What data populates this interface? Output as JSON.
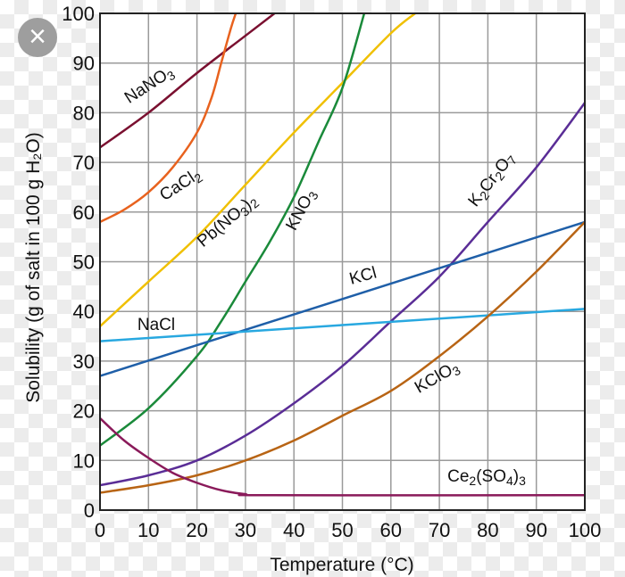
{
  "close_button": {
    "icon": "close-icon",
    "label": "×"
  },
  "chart_data": {
    "type": "line",
    "title": "",
    "xlabel": "Temperature (°C)",
    "ylabel": "Solubility (g of salt in 100 g H₂O)",
    "xlim": [
      0,
      100
    ],
    "ylim": [
      0,
      100
    ],
    "xticks": [
      "0",
      "10",
      "20",
      "30",
      "40",
      "50",
      "60",
      "70",
      "80",
      "90",
      "100"
    ],
    "yticks": [
      "0",
      "10",
      "20",
      "30",
      "40",
      "50",
      "60",
      "70",
      "80",
      "90",
      "100"
    ],
    "grid": true,
    "series": [
      {
        "name": "NaNO3",
        "label_parts": [
          [
            "NaNO",
            ""
          ],
          [
            "3",
            "sub"
          ]
        ],
        "color": "#7a1030",
        "x": [
          0,
          10,
          20,
          30,
          36
        ],
        "y": [
          73,
          80,
          88,
          95.5,
          100
        ]
      },
      {
        "name": "CaCl2",
        "label_parts": [
          [
            "CaCl",
            ""
          ],
          [
            "2",
            "sub"
          ]
        ],
        "color": "#e8621e",
        "x": [
          0,
          5,
          10,
          15,
          20,
          23,
          25,
          27,
          28
        ],
        "y": [
          58,
          60.5,
          64,
          69,
          76,
          83,
          90,
          97,
          100
        ]
      },
      {
        "name": "Pb(NO3)2",
        "label_parts": [
          [
            "Pb(NO",
            ""
          ],
          [
            "3",
            "sub"
          ],
          [
            ")",
            ""
          ],
          [
            "2",
            "sub"
          ]
        ],
        "color": "#f0c000",
        "x": [
          0,
          10,
          20,
          30,
          40,
          50,
          60,
          65
        ],
        "y": [
          37,
          46,
          55,
          65.5,
          76,
          86,
          96,
          100
        ]
      },
      {
        "name": "KNO3",
        "label_parts": [
          [
            "KNO",
            ""
          ],
          [
            "3",
            "sub"
          ]
        ],
        "color": "#1a8a3a",
        "x": [
          0,
          10,
          20,
          25,
          30,
          35,
          40,
          45,
          50,
          54.5
        ],
        "y": [
          13,
          20.5,
          31,
          38,
          46,
          54,
          63,
          74,
          85,
          100
        ]
      },
      {
        "name": "K2Cr2O7",
        "label_parts": [
          [
            "K",
            ""
          ],
          [
            "2",
            "sub"
          ],
          [
            "Cr",
            ""
          ],
          [
            "2",
            "sub"
          ],
          [
            "O",
            ""
          ],
          [
            "7",
            "sub"
          ]
        ],
        "color": "#5a2d96",
        "x": [
          0,
          10,
          20,
          30,
          40,
          50,
          60,
          70,
          80,
          90,
          100
        ],
        "y": [
          5,
          7,
          10,
          15,
          21.5,
          29,
          38,
          47,
          58,
          69,
          82
        ]
      },
      {
        "name": "KCl",
        "label_parts": [
          [
            "KCl",
            ""
          ]
        ],
        "color": "#1f5fa8",
        "x": [
          0,
          100
        ],
        "y": [
          27,
          58
        ]
      },
      {
        "name": "NaCl",
        "label_parts": [
          [
            "NaCl",
            ""
          ]
        ],
        "color": "#28a8e0",
        "x": [
          0,
          100
        ],
        "y": [
          34,
          40.5
        ]
      },
      {
        "name": "KClO3",
        "label_parts": [
          [
            "KClO",
            ""
          ],
          [
            "3",
            "sub"
          ]
        ],
        "color": "#b86414",
        "x": [
          0,
          10,
          20,
          30,
          40,
          50,
          60,
          70,
          80,
          90,
          100
        ],
        "y": [
          3.5,
          5,
          7,
          10,
          14,
          19,
          24,
          31,
          39,
          48,
          58
        ]
      },
      {
        "name": "Ce2(SO4)3",
        "label_parts": [
          [
            "Ce",
            ""
          ],
          [
            "2",
            "sub"
          ],
          [
            "(SO",
            ""
          ],
          [
            "4",
            "sub"
          ],
          [
            ")",
            ""
          ],
          [
            "3",
            "sub"
          ]
        ],
        "color": "#8a1a5a",
        "x": [
          0,
          5,
          10,
          15,
          20,
          25,
          30,
          35,
          100
        ],
        "y": [
          18.5,
          14,
          10.5,
          7.5,
          5.5,
          4,
          3.2,
          3,
          3
        ]
      }
    ]
  }
}
